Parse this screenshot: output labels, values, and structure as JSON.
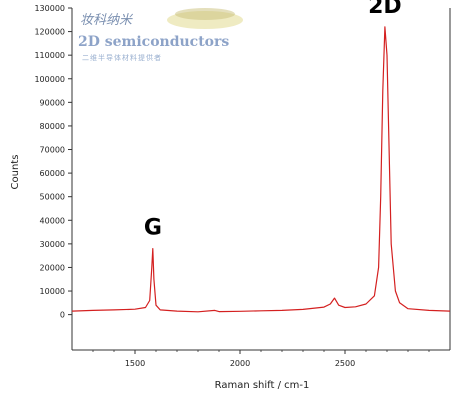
{
  "chart_data": {
    "type": "line",
    "xlabel": "Raman shift / cm-1",
    "ylabel": "Counts",
    "xlim": [
      1200,
      3000
    ],
    "ylim": [
      -15000,
      130000
    ],
    "x_ticks": [
      1500,
      2000,
      2500
    ],
    "y_ticks": [
      0,
      10000,
      20000,
      30000,
      40000,
      50000,
      60000,
      70000,
      80000,
      90000,
      100000,
      110000,
      120000,
      130000
    ],
    "series": [
      {
        "color": "#d42020",
        "x": [
          1200,
          1300,
          1400,
          1500,
          1550,
          1570,
          1580,
          1585,
          1590,
          1600,
          1620,
          1700,
          1800,
          1880,
          1900,
          2000,
          2100,
          2200,
          2300,
          2400,
          2430,
          2450,
          2470,
          2500,
          2550,
          2600,
          2640,
          2660,
          2670,
          2680,
          2690,
          2700,
          2710,
          2720,
          2740,
          2760,
          2800,
          2900,
          3000
        ],
        "values": [
          1500,
          1800,
          2000,
          2300,
          3000,
          6000,
          20000,
          28000,
          15000,
          4000,
          2000,
          1500,
          1200,
          1800,
          1300,
          1400,
          1600,
          1800,
          2200,
          3200,
          4500,
          7000,
          4000,
          3000,
          3300,
          4500,
          8000,
          20000,
          50000,
          95000,
          122000,
          110000,
          70000,
          30000,
          10000,
          5000,
          2500,
          1800,
          1500
        ]
      }
    ],
    "annotations": [
      {
        "text": "G",
        "x": 1585
      },
      {
        "text": "2D",
        "x": 2690
      }
    ],
    "grid": false
  },
  "watermark": {
    "line1": "妆科纳米",
    "line2": "2D semiconductors",
    "line3": "二维半导体材料提供者"
  }
}
